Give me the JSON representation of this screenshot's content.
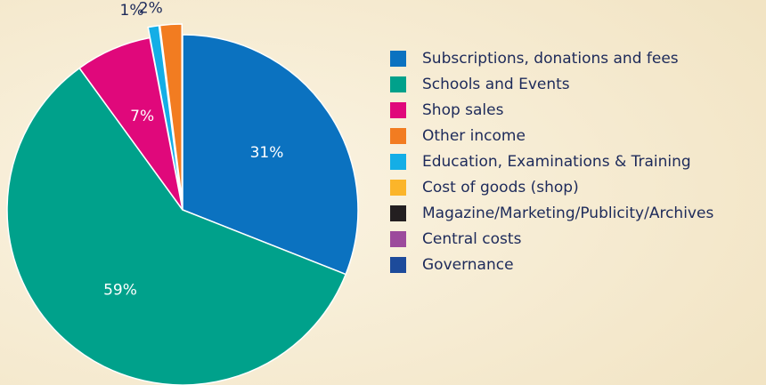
{
  "chart_data": {
    "type": "pie",
    "categories": [
      "Subscriptions, donations and fees",
      "Schools and Events",
      "Shop sales",
      "Other income",
      "Education, Examinations & Training",
      "Cost of goods (shop)",
      "Magazine/Marketing/Publicity/Archives",
      "Central costs",
      "Governance"
    ],
    "colors": [
      "#0b72c0",
      "#00a18b",
      "#e0087b",
      "#f27c21",
      "#14aee6",
      "#fbb52a",
      "#231f20",
      "#9c4a9c",
      "#1d4b9b"
    ],
    "values": [
      31,
      59,
      7,
      2,
      1,
      null,
      null,
      null,
      null
    ],
    "value_labels": [
      "31%",
      "59%",
      "7%",
      "2%",
      "1%",
      null,
      null,
      null,
      null
    ],
    "legend": "right"
  }
}
